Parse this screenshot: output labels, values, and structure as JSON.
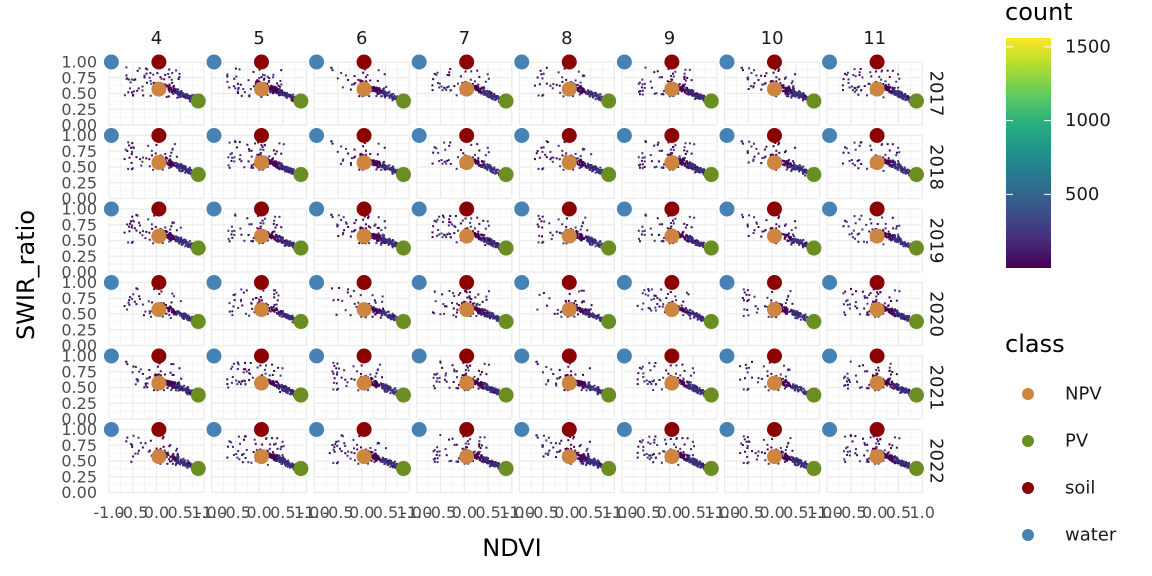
{
  "chart_data": {
    "type": "heatmap",
    "title": "",
    "xlabel": "NDVI",
    "ylabel": "SWIR_ratio",
    "xlim": [
      -1.0,
      1.0
    ],
    "ylim": [
      0.0,
      1.0
    ],
    "x_tick_labels": [
      "-1.0",
      "-0.5",
      "0.0",
      "0.5",
      "1.0"
    ],
    "x_tick_values": [
      -1.0,
      -0.5,
      0.0,
      0.5,
      1.0
    ],
    "y_tick_labels": [
      "0.00",
      "0.25",
      "0.50",
      "0.75",
      "1.00"
    ],
    "y_tick_values": [
      0.0,
      0.25,
      0.5,
      0.75,
      1.0
    ],
    "grid": true,
    "facet_cols": [
      "4",
      "5",
      "6",
      "7",
      "8",
      "9",
      "10",
      "11"
    ],
    "facet_rows": [
      "2017",
      "2018",
      "2019",
      "2020",
      "2021",
      "2022"
    ],
    "endmembers": [
      {
        "class": "NPV",
        "x": 0.05,
        "y": 0.57,
        "color": "#CD853F"
      },
      {
        "class": "PV",
        "x": 0.88,
        "y": 0.38,
        "color": "#6B8E23"
      },
      {
        "class": "soil",
        "x": 0.05,
        "y": 1.0,
        "color": "#8B0000"
      },
      {
        "class": "water",
        "x": -0.95,
        "y": 1.0,
        "color": "#4682B4"
      }
    ],
    "count_legend": {
      "title": "count",
      "breaks": [
        "500",
        "1000",
        "1500"
      ],
      "break_values": [
        500,
        1000,
        1500
      ],
      "range": [
        1,
        1560
      ]
    },
    "class_legend": {
      "title": "class",
      "items": [
        {
          "label": "NPV",
          "color": "#CD853F"
        },
        {
          "label": "PV",
          "color": "#6B8E23"
        },
        {
          "label": "soil",
          "color": "#8B0000"
        },
        {
          "label": "water",
          "color": "#4682B4"
        }
      ]
    }
  }
}
